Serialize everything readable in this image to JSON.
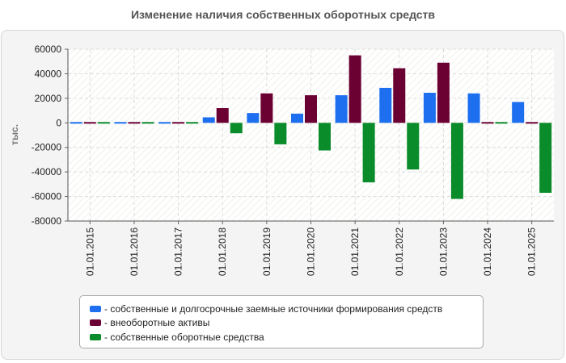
{
  "chart_data": {
    "type": "bar",
    "title": "Изменение наличия собственных оборотных средств",
    "ylabel": "тыс.",
    "xlabel": "",
    "ylim": [
      -80000,
      60000
    ],
    "yticks": [
      60000,
      40000,
      20000,
      0,
      -20000,
      -40000,
      -60000,
      -80000
    ],
    "grid": true,
    "legend_position": "bottom",
    "categories": [
      "01.01.2015",
      "01.01.2016",
      "01.01.2017",
      "01.01.2018",
      "01.01.2019",
      "01.01.2020",
      "01.01.2021",
      "01.01.2022",
      "01.01.2023",
      "01.01.2024",
      "01.01.2025"
    ],
    "series": [
      {
        "name": "- собственные и долгосрочные заемные источники формирования средств",
        "color": "#1e6ff0",
        "values": [
          500,
          500,
          500,
          4500,
          8000,
          7500,
          22500,
          28500,
          24500,
          24000,
          17000
        ]
      },
      {
        "name": "- внеоборотные активы",
        "color": "#6b0033",
        "values": [
          500,
          500,
          500,
          12000,
          24000,
          22500,
          55000,
          44500,
          49000,
          500,
          500
        ]
      },
      {
        "name": "- собственные оборотные средства",
        "color": "#0a8c2a",
        "values": [
          500,
          500,
          500,
          -8500,
          -17500,
          -22500,
          -48500,
          -38000,
          -62000,
          500,
          -57000
        ]
      }
    ]
  }
}
